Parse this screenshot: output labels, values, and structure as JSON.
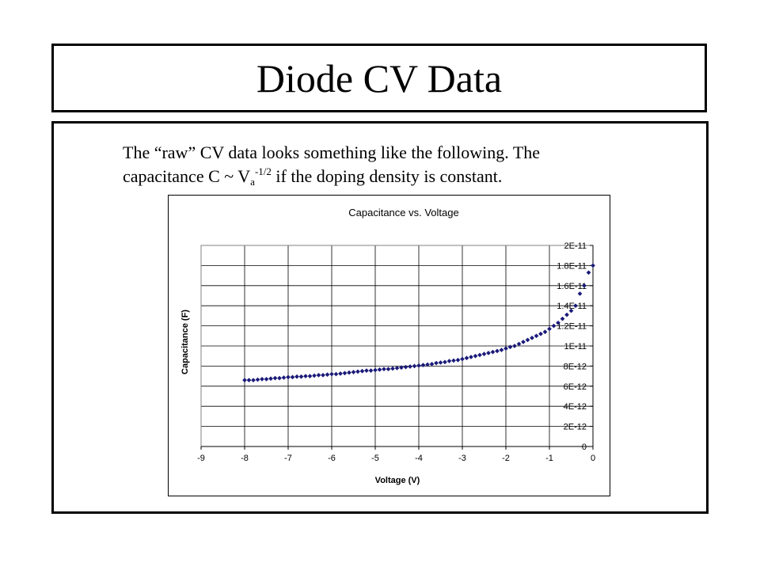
{
  "slide": {
    "title": "Diode CV Data",
    "text": {
      "line1": "The “raw” CV data looks something like the following.  The",
      "line2_pre": "capacitance C ~ V",
      "line2_sub": "a",
      "line2_sup": "-1/2",
      "line2_post": " if the doping density is constant."
    }
  },
  "chart_data": {
    "type": "scatter",
    "title": "Capacitance vs. Voltage",
    "xlabel": "Voltage (V)",
    "ylabel": "Capacitance (F)",
    "xlim": [
      -9,
      0
    ],
    "ylim": [
      0,
      2e-11
    ],
    "x_ticks": [
      "-9",
      "-8",
      "-7",
      "-6",
      "-5",
      "-4",
      "-3",
      "-2",
      "-1",
      "0"
    ],
    "y_ticks": [
      "0",
      "2E-12",
      "4E-12",
      "6E-12",
      "8E-12",
      "1E-11",
      "1.2E-11",
      "1.4E-11",
      "1.6E-11",
      "1.8E-11",
      "2E-11"
    ],
    "grid": true,
    "legend": "none",
    "marker_color": "#1a1a7a",
    "x": [
      -8.0,
      -7.9,
      -7.8,
      -7.7,
      -7.6,
      -7.5,
      -7.4,
      -7.3,
      -7.2,
      -7.1,
      -7.0,
      -6.9,
      -6.8,
      -6.7,
      -6.6,
      -6.5,
      -6.4,
      -6.3,
      -6.2,
      -6.1,
      -6.0,
      -5.9,
      -5.8,
      -5.7,
      -5.6,
      -5.5,
      -5.4,
      -5.3,
      -5.2,
      -5.1,
      -5.0,
      -4.9,
      -4.8,
      -4.7,
      -4.6,
      -4.5,
      -4.4,
      -4.3,
      -4.2,
      -4.1,
      -4.0,
      -3.9,
      -3.8,
      -3.7,
      -3.6,
      -3.5,
      -3.4,
      -3.3,
      -3.2,
      -3.1,
      -3.0,
      -2.9,
      -2.8,
      -2.7,
      -2.6,
      -2.5,
      -2.4,
      -2.3,
      -2.2,
      -2.1,
      -2.0,
      -1.9,
      -1.8,
      -1.7,
      -1.6,
      -1.5,
      -1.4,
      -1.3,
      -1.2,
      -1.1,
      -1.0,
      -0.9,
      -0.8,
      -0.7,
      -0.6,
      -0.5,
      -0.4,
      -0.3,
      -0.2,
      -0.1,
      0.0
    ],
    "y": [
      6.6e-12,
      6.6e-12,
      6.6e-12,
      6.65e-12,
      6.7e-12,
      6.7e-12,
      6.75e-12,
      6.8e-12,
      6.8e-12,
      6.85e-12,
      6.9e-12,
      6.9e-12,
      6.95e-12,
      6.95e-12,
      7e-12,
      7e-12,
      7.05e-12,
      7.1e-12,
      7.1e-12,
      7.15e-12,
      7.2e-12,
      7.2e-12,
      7.25e-12,
      7.3e-12,
      7.35e-12,
      7.4e-12,
      7.45e-12,
      7.5e-12,
      7.55e-12,
      7.55e-12,
      7.6e-12,
      7.65e-12,
      7.7e-12,
      7.7e-12,
      7.75e-12,
      7.8e-12,
      7.85e-12,
      7.9e-12,
      7.95e-12,
      8e-12,
      8.05e-12,
      8.1e-12,
      8.15e-12,
      8.2e-12,
      8.3e-12,
      8.35e-12,
      8.4e-12,
      8.5e-12,
      8.55e-12,
      8.6e-12,
      8.7e-12,
      8.8e-12,
      8.9e-12,
      9e-12,
      9.1e-12,
      9.2e-12,
      9.3e-12,
      9.4e-12,
      9.5e-12,
      9.6e-12,
      9.75e-12,
      9.9e-12,
      1e-11,
      1.02e-11,
      1.04e-11,
      1.06e-11,
      1.08e-11,
      1.1e-11,
      1.12e-11,
      1.14e-11,
      1.17e-11,
      1.2e-11,
      1.23e-11,
      1.27e-11,
      1.31e-11,
      1.35e-11,
      1.4e-11,
      1.52e-11,
      1.6e-11,
      1.73e-11,
      1.8e-11
    ]
  }
}
